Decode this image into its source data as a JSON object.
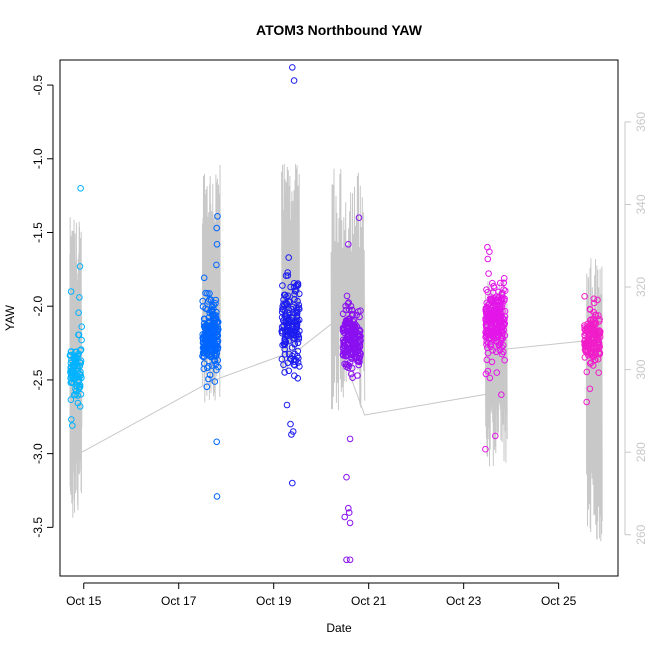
{
  "chart_data": {
    "type": "scatter",
    "title": "ATOM3 Northbound YAW",
    "xlabel": "Date",
    "ylabel": "YAW",
    "xlim": [
      "2014-10-14T12:00",
      "2014-10-26T06:00"
    ],
    "ylim": [
      -3.83,
      -0.33
    ],
    "x_ticks": [
      {
        "date": "2014-10-15T00:00",
        "label": "Oct 15"
      },
      {
        "date": "2014-10-17T00:00",
        "label": "Oct 17"
      },
      {
        "date": "2014-10-19T00:00",
        "label": "Oct 19"
      },
      {
        "date": "2014-10-21T00:00",
        "label": "Oct 21"
      },
      {
        "date": "2014-10-23T00:00",
        "label": "Oct 23"
      },
      {
        "date": "2014-10-25T00:00",
        "label": "Oct 25"
      }
    ],
    "y_ticks": [
      -3.5,
      -3.0,
      -2.5,
      -2.0,
      -1.5,
      -1.0,
      -0.5
    ],
    "y2_lim": [
      250.0,
      375.0
    ],
    "y2_ticks": [
      260,
      280,
      300,
      320,
      340,
      360
    ],
    "grid": false,
    "series": [
      {
        "start": "2014-10-14T17:00",
        "end": "2014-10-14T23:00",
        "color": "#00b3ff",
        "count": 90,
        "center": -2.42,
        "spread": 0.16,
        "extra_points": [
          [
            0.1,
            -1.9
          ],
          [
            0.9,
            -1.2
          ],
          [
            0.85,
            -1.73
          ],
          [
            0.8,
            -1.94
          ],
          [
            0.2,
            -2.81
          ]
        ]
      },
      {
        "start": "2014-10-17T12:00",
        "end": "2014-10-17T20:00",
        "color": "#0066ff",
        "count": 200,
        "center": -2.22,
        "spread": 0.17,
        "extra_points": [
          [
            0.95,
            -1.39
          ],
          [
            0.9,
            -1.47
          ],
          [
            0.92,
            -1.58
          ],
          [
            0.88,
            -1.72
          ],
          [
            0.9,
            -2.92
          ],
          [
            0.92,
            -3.29
          ]
        ]
      },
      {
        "start": "2014-10-19T04:00",
        "end": "2014-10-19T13:00",
        "color": "#1c1cf0",
        "count": 160,
        "center": -2.12,
        "spread": 0.2,
        "extra_points": [
          [
            0.6,
            -0.38
          ],
          [
            0.7,
            -0.47
          ],
          [
            0.3,
            -2.67
          ],
          [
            0.5,
            -2.8
          ],
          [
            0.55,
            -2.87
          ],
          [
            0.65,
            -2.85
          ],
          [
            0.6,
            -3.2
          ]
        ]
      },
      {
        "start": "2014-10-20T11:00",
        "end": "2014-10-20T20:00",
        "color": "#8a10f0",
        "count": 200,
        "center": -2.22,
        "spread": 0.16,
        "extra_points": [
          [
            0.9,
            -1.4
          ],
          [
            0.3,
            -1.58
          ],
          [
            0.4,
            -2.9
          ],
          [
            0.2,
            -3.16
          ],
          [
            0.3,
            -3.37
          ],
          [
            0.35,
            -3.4
          ],
          [
            0.1,
            -3.43
          ],
          [
            0.4,
            -3.47
          ],
          [
            0.2,
            -3.72
          ],
          [
            0.4,
            -3.72
          ]
        ]
      },
      {
        "start": "2014-10-23T11:00",
        "end": "2014-10-23T21:00",
        "color": "#e316e8",
        "count": 230,
        "center": -2.1,
        "spread": 0.16,
        "extra_points": [
          [
            0.1,
            -1.6
          ],
          [
            0.2,
            -1.63
          ],
          [
            0.12,
            -1.68
          ],
          [
            0.5,
            -2.88
          ],
          [
            0.8,
            -2.6
          ],
          [
            0.0,
            -2.97
          ]
        ]
      },
      {
        "start": "2014-10-25T13:00",
        "end": "2014-10-25T21:00",
        "color": "#f01ec8",
        "count": 160,
        "center": -2.22,
        "spread": 0.12,
        "extra_points": [
          [
            0.15,
            -2.65
          ],
          [
            0.35,
            -2.56
          ],
          [
            0.6,
            -1.95
          ]
        ]
      }
    ],
    "secondary_series": {
      "axis": "right",
      "color": "#c8c8c8",
      "connector": [
        [
          "2014-10-14T23:00",
          280.0
        ],
        [
          "2014-10-17T12:00",
          296.0
        ],
        [
          "2014-10-17T21:00",
          298.0
        ],
        [
          "2014-10-19T13:00",
          305.0
        ],
        [
          "2014-10-20T05:00",
          311.0
        ],
        [
          "2014-10-20T22:00",
          289.0
        ],
        [
          "2014-10-23T11:00",
          294.0
        ],
        [
          "2014-10-23T22:00",
          305.0
        ],
        [
          "2014-10-25T14:00",
          307.0
        ]
      ],
      "spike_clusters": [
        {
          "start": "2014-10-14T17:00",
          "end": "2014-10-14T23:00",
          "low": 262.0,
          "high": 337.0
        },
        {
          "start": "2014-10-17T12:00",
          "end": "2014-10-17T21:00",
          "low": 292.0,
          "high": 351.0
        },
        {
          "start": "2014-10-19T04:00",
          "end": "2014-10-19T13:00",
          "low": 298.0,
          "high": 350.0
        },
        {
          "start": "2014-10-20T05:00",
          "end": "2014-10-20T22:00",
          "low": 290.0,
          "high": 349.0
        },
        {
          "start": "2014-10-23T11:00",
          "end": "2014-10-23T22:00",
          "low": 276.0,
          "high": 322.0
        },
        {
          "start": "2014-10-25T14:00",
          "end": "2014-10-25T22:00",
          "low": 258.0,
          "high": 327.0
        }
      ]
    }
  }
}
